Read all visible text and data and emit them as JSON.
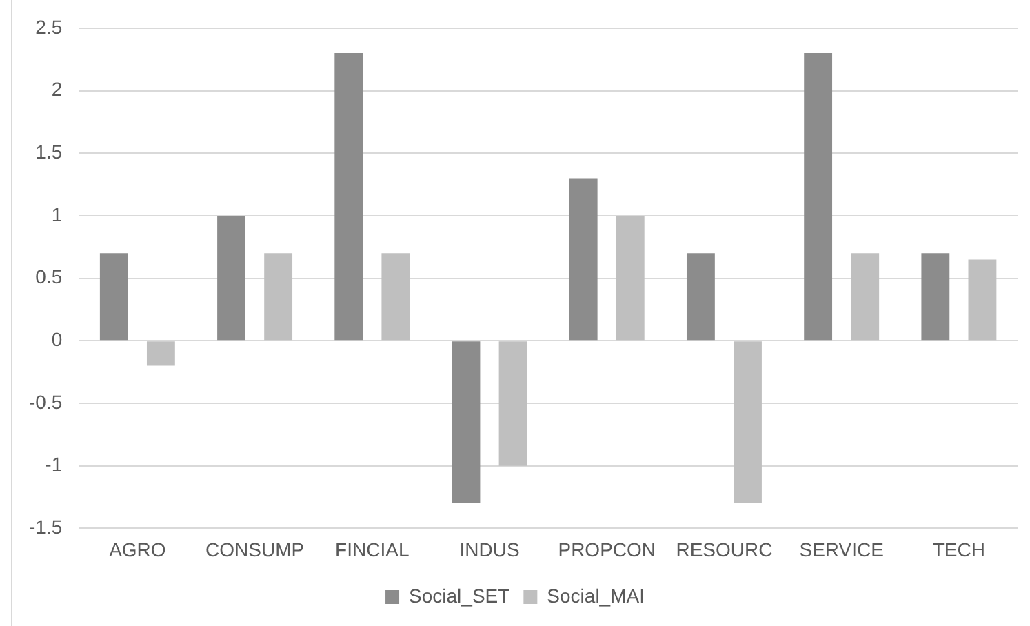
{
  "chart_data": {
    "type": "bar",
    "categories": [
      "AGRO",
      "CONSUMP",
      "FINCIAL",
      "INDUS",
      "PROPCON",
      "RESOURC",
      "SERVICE",
      "TECH"
    ],
    "series": [
      {
        "name": "Social_SET",
        "color": "#8c8c8c",
        "values": [
          0.7,
          1,
          2.3,
          -1.3,
          1.3,
          0.7,
          2.3,
          0.7
        ]
      },
      {
        "name": "Social_MAI",
        "color": "#bfbfbf",
        "values": [
          -0.2,
          0.7,
          0.7,
          -1,
          1,
          -1.3,
          0.7,
          0.65
        ]
      }
    ],
    "ylim": [
      -1.5,
      2.5
    ],
    "yticks": [
      -1.5,
      -1,
      -0.5,
      0,
      0.5,
      1,
      1.5,
      2,
      2.5
    ],
    "grid": "y",
    "legend": "bottom"
  }
}
